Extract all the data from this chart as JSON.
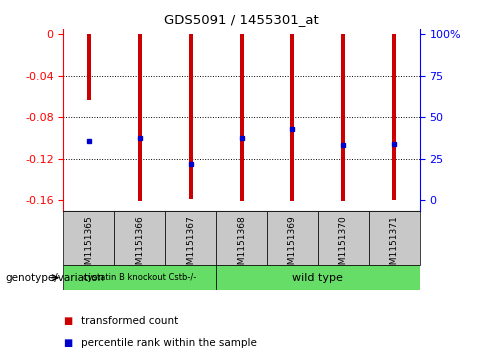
{
  "title": "GDS5091 / 1455301_at",
  "samples": [
    "GSM1151365",
    "GSM1151366",
    "GSM1151367",
    "GSM1151368",
    "GSM1151369",
    "GSM1151370",
    "GSM1151371"
  ],
  "bar_tops": [
    -0.063,
    -0.161,
    -0.159,
    -0.161,
    -0.161,
    -0.161,
    -0.16
  ],
  "blue_y": [
    -0.103,
    -0.1,
    -0.125,
    -0.1,
    -0.091,
    -0.107,
    -0.106
  ],
  "ylim": [
    -0.17,
    0.005
  ],
  "yticks_left": [
    0,
    -0.04,
    -0.08,
    -0.12,
    -0.16
  ],
  "right_tick_positions": [
    0,
    -0.04,
    -0.08,
    -0.12,
    -0.16
  ],
  "right_tick_labels": [
    "100%",
    "75",
    "50",
    "25",
    "0"
  ],
  "bar_color": "#cc0000",
  "blue_color": "#0000cc",
  "group1_label": "cystatin B knockout Cstb-/-",
  "group2_label": "wild type",
  "group1_indices": [
    0,
    1,
    2
  ],
  "group2_indices": [
    3,
    4,
    5,
    6
  ],
  "group_color": "#66dd66",
  "xlabel_left": "genotype/variation",
  "legend_red": "transformed count",
  "legend_blue": "percentile rank within the sample",
  "background_color": "#ffffff",
  "sample_bg": "#c8c8c8",
  "bar_width": 0.08
}
